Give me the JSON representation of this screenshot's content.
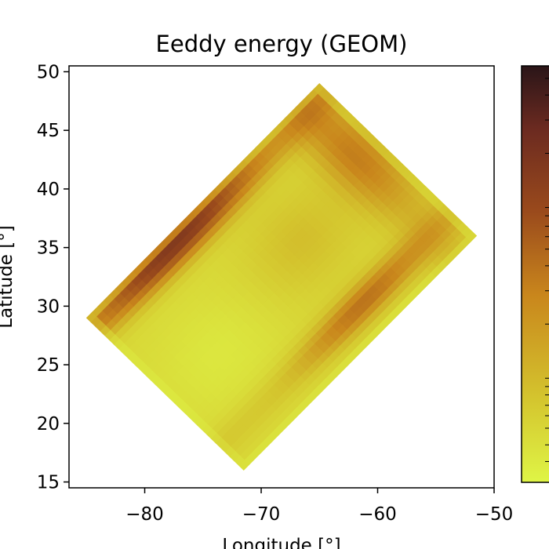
{
  "chart_data": {
    "type": "heatmap",
    "title": "Eeddy energy (GEOM)",
    "xlabel": "Longitude [°]",
    "ylabel": "Latitude [°]",
    "xlim": [
      -86.5,
      -50
    ],
    "ylim": [
      14.5,
      50.5
    ],
    "xticks": [
      -80,
      -70,
      -60,
      -50
    ],
    "xtick_labels": [
      "−80",
      "−70",
      "−60",
      "−50"
    ],
    "yticks": [
      15,
      20,
      25,
      30,
      35,
      40,
      45,
      50
    ],
    "ytick_labels": [
      "15",
      "20",
      "25",
      "30",
      "35",
      "40",
      "45",
      "50"
    ],
    "domain_corners": {
      "west": [
        -85,
        29
      ],
      "north": [
        -65,
        49
      ],
      "east": [
        -51.5,
        36
      ],
      "south": [
        -71.5,
        15.7
      ]
    },
    "colorscale": [
      "#dff546",
      "#d4c52e",
      "#c9861c",
      "#9a4a1c",
      "#6b2a20",
      "#2a1518"
    ],
    "colorbar_scale": "log",
    "grid": false
  }
}
